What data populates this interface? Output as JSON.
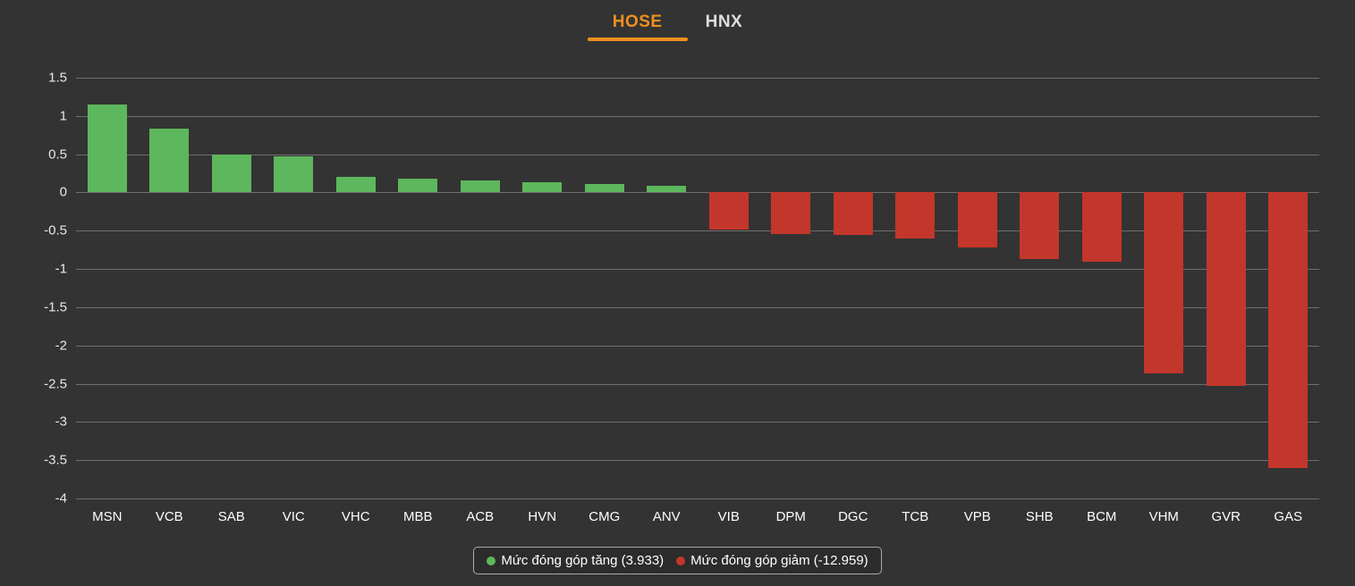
{
  "tabs": [
    {
      "label": "HOSE",
      "active": true
    },
    {
      "label": "HNX",
      "active": false
    }
  ],
  "legend": {
    "up": "Mức đóng góp tăng (3.933)",
    "down": "Mức đóng góp giảm (-12.959)"
  },
  "colors": {
    "background": "#333333",
    "up": "#5db75c",
    "down": "#c3362b",
    "accent": "#ef8f1f",
    "grid": "#6e6e6e",
    "text": "#f0f0f0"
  },
  "chart_data": {
    "type": "bar",
    "title": "",
    "xlabel": "",
    "ylabel": "",
    "categories": [
      "MSN",
      "VCB",
      "SAB",
      "VIC",
      "VHC",
      "MBB",
      "ACB",
      "HVN",
      "CMG",
      "ANV",
      "VIB",
      "DPM",
      "DGC",
      "TCB",
      "VPB",
      "SHB",
      "BCM",
      "VHM",
      "GVR",
      "GAS"
    ],
    "values": [
      1.15,
      0.84,
      0.5,
      0.47,
      0.2,
      0.18,
      0.16,
      0.13,
      0.11,
      0.09,
      -0.49,
      -0.54,
      -0.55,
      -0.6,
      -0.72,
      -0.87,
      -0.9,
      -2.37,
      -2.53,
      -3.6
    ],
    "ylim": [
      -4,
      1.5
    ],
    "yticks": [
      1.5,
      1,
      0.5,
      0,
      -0.5,
      -1,
      -1.5,
      -2,
      -2.5,
      -3,
      -3.5,
      -4
    ],
    "grid": true,
    "legend_position": "bottom",
    "series_names": {
      "up": "Mức đóng góp tăng",
      "down": "Mức đóng góp giảm"
    },
    "series_totals": {
      "up": 3.933,
      "down": -12.959
    }
  }
}
